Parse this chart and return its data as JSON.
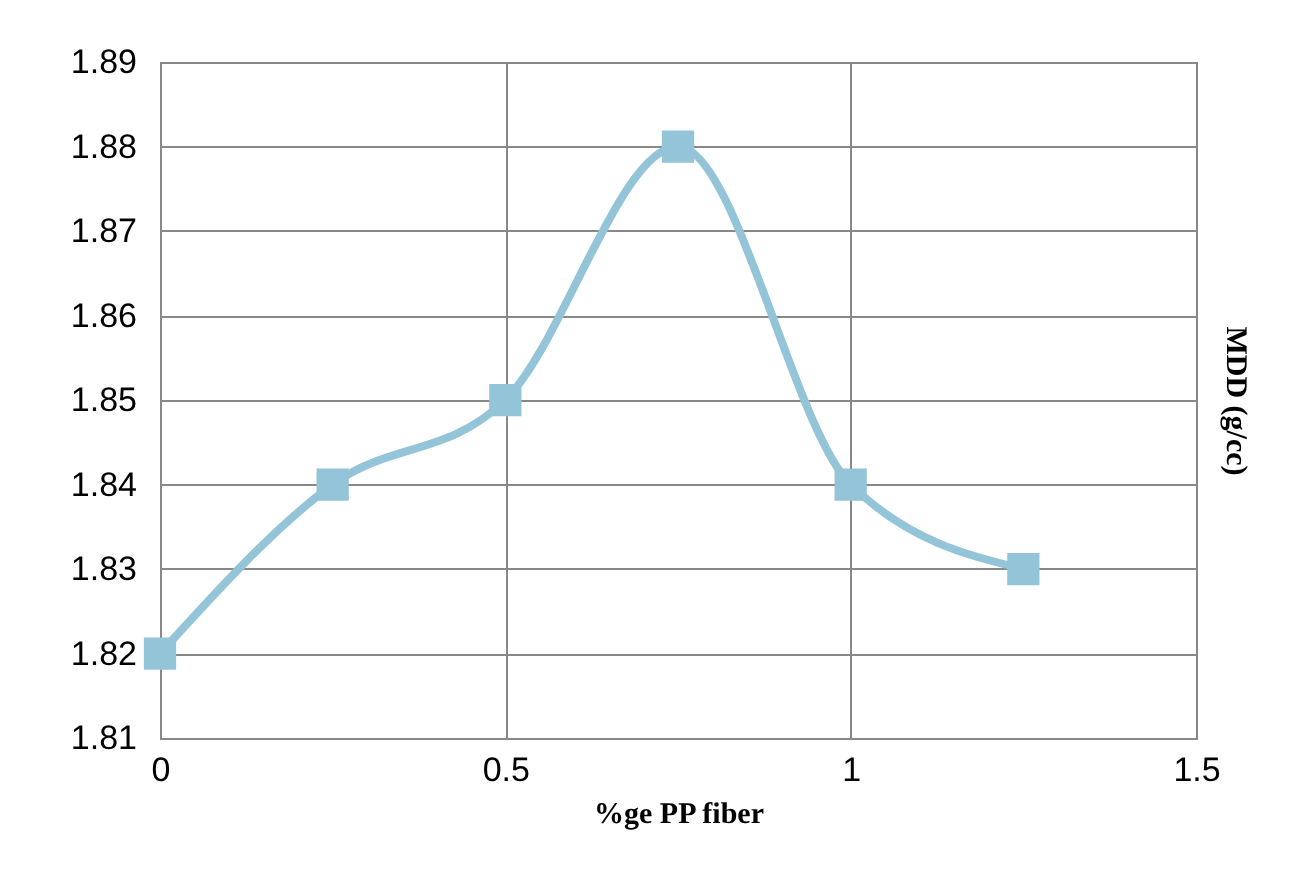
{
  "chart_data": {
    "type": "line",
    "xlabel": "%ge PP fiber",
    "ylabel": "MDD (g/cc)",
    "x": [
      0,
      0.25,
      0.5,
      0.75,
      1,
      1.25
    ],
    "series": [
      {
        "color": "#93c4d8",
        "values": [
          1.82,
          1.84,
          1.85,
          1.88,
          1.84,
          1.83
        ]
      }
    ],
    "xlim": [
      0,
      1.5
    ],
    "xticks": [
      {
        "value": 0,
        "label": "0"
      },
      0.5,
      {
        "value": 1,
        "label": "1"
      },
      1.5
    ],
    "ylim": [
      1.81,
      1.89
    ],
    "yticks": [
      1.81,
      1.82,
      1.83,
      1.84,
      1.85,
      1.86,
      1.87,
      1.88,
      1.89
    ],
    "grid": true,
    "marker": "square",
    "line_style": "solid"
  }
}
